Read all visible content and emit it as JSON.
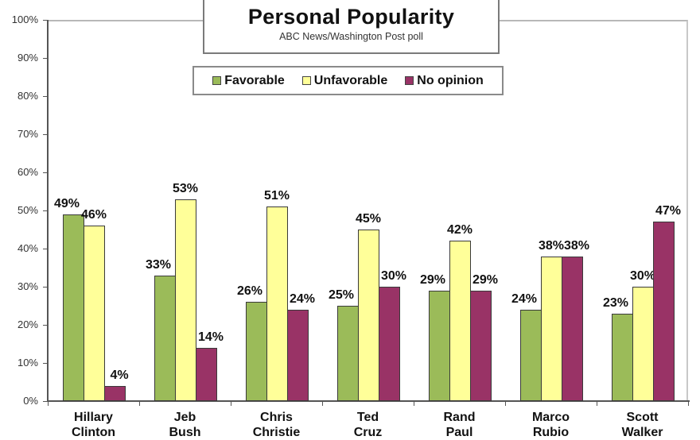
{
  "title": "Personal Popularity",
  "subtitle": "ABC News/Washington  Post poll",
  "legend": [
    {
      "label": "Favorable",
      "color": "#9bbb59"
    },
    {
      "label": "Unfavorable",
      "color": "#ffff99"
    },
    {
      "label": "No opinion",
      "color": "#993366"
    }
  ],
  "y_axis": {
    "ticks": [
      "0%",
      "10%",
      "20%",
      "30%",
      "40%",
      "50%",
      "60%",
      "70%",
      "80%",
      "90%",
      "100%"
    ]
  },
  "chart_data": {
    "type": "bar",
    "title": "Personal Popularity",
    "subtitle": "ABC News/Washington  Post poll",
    "xlabel": "",
    "ylabel": "",
    "ylim": [
      0,
      100
    ],
    "y_tick_labels": [
      "0%",
      "10%",
      "20%",
      "30%",
      "40%",
      "50%",
      "60%",
      "70%",
      "80%",
      "90%",
      "100%"
    ],
    "grid": false,
    "legend_position": "top-center",
    "categories": [
      "Hillary Clinton",
      "Jeb Bush",
      "Chris Christie",
      "Ted Cruz",
      "Rand Paul",
      "Marco Rubio",
      "Scott Walker"
    ],
    "visible_category_labels": [
      "Hillary",
      "Jeb",
      "Chris",
      "Ted",
      "Rand",
      "Marco",
      "Scott"
    ],
    "series": [
      {
        "name": "Favorable",
        "color": "#9bbb59",
        "values": [
          49,
          33,
          26,
          25,
          29,
          24,
          23
        ]
      },
      {
        "name": "Unfavorable",
        "color": "#ffff99",
        "values": [
          46,
          53,
          51,
          45,
          42,
          38,
          30
        ]
      },
      {
        "name": "No opinion",
        "color": "#993366",
        "values": [
          4,
          14,
          24,
          30,
          29,
          38,
          47
        ]
      }
    ],
    "data_labels": true,
    "value_suffix": "%"
  }
}
